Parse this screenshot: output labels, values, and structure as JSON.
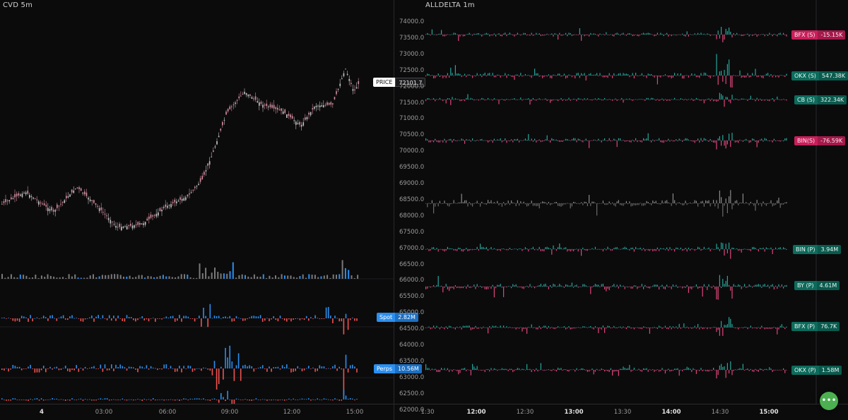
{
  "left": {
    "title": "CVD 5m",
    "price_tag": {
      "label": "PRICE",
      "value": "72101.7"
    },
    "spot_tag": {
      "label": "Spot",
      "value": "2.82M"
    },
    "perps_tag": {
      "label": "Perps",
      "value": "10.56M"
    },
    "x_ticks": [
      {
        "label": "4",
        "bold": true
      },
      {
        "label": "03:00",
        "bold": false
      },
      {
        "label": "06:00",
        "bold": false
      },
      {
        "label": "09:00",
        "bold": false
      },
      {
        "label": "12:00",
        "bold": false
      },
      {
        "label": "15:00",
        "bold": false
      }
    ]
  },
  "right": {
    "title": "ALLDELTA 1m",
    "y_ticks": [
      "74000.0",
      "73500.0",
      "73000.0",
      "72500.0",
      "72000.0",
      "71500.0",
      "71000.0",
      "70500.0",
      "70000.0",
      "69500.0",
      "69000.0",
      "68500.0",
      "68000.0",
      "67500.0",
      "67000.0",
      "66500.0",
      "66000.0",
      "65500.0",
      "65000.0",
      "64500.0",
      "64000.0",
      "63500.0",
      "63000.0",
      "62500.0",
      "62000.0"
    ],
    "tags": [
      {
        "label": "BFX (S)",
        "value": "-15.15K",
        "color": "red"
      },
      {
        "label": "OKX (S)",
        "value": "547.38K",
        "color": "green"
      },
      {
        "label": "CB (S)",
        "value": "322.34K",
        "color": "green"
      },
      {
        "label": "BIN(S)",
        "value": "-76.59K",
        "color": "red"
      },
      {
        "label": "BIN (P)",
        "value": "3.94M",
        "color": "green"
      },
      {
        "label": "BY (P)",
        "value": "4.61M",
        "color": "green"
      },
      {
        "label": "BFX (P)",
        "value": "76.7K",
        "color": "green"
      },
      {
        "label": "OKX (P)",
        "value": "1.58M",
        "color": "green"
      }
    ],
    "x_ticks": [
      {
        "label": "1:30",
        "bold": false
      },
      {
        "label": "12:00",
        "bold": true
      },
      {
        "label": "12:30",
        "bold": false
      },
      {
        "label": "13:00",
        "bold": true
      },
      {
        "label": "13:30",
        "bold": false
      },
      {
        "label": "14:00",
        "bold": true
      },
      {
        "label": "14:30",
        "bold": false
      },
      {
        "label": "15:00",
        "bold": true
      }
    ]
  },
  "fab": {
    "icon": "more-dots-icon",
    "glyph": "•••"
  },
  "colors": {
    "green": "#26a69a",
    "red": "#ef5350",
    "blue": "#2b8ff0",
    "candle": "#c9c9c9"
  }
}
